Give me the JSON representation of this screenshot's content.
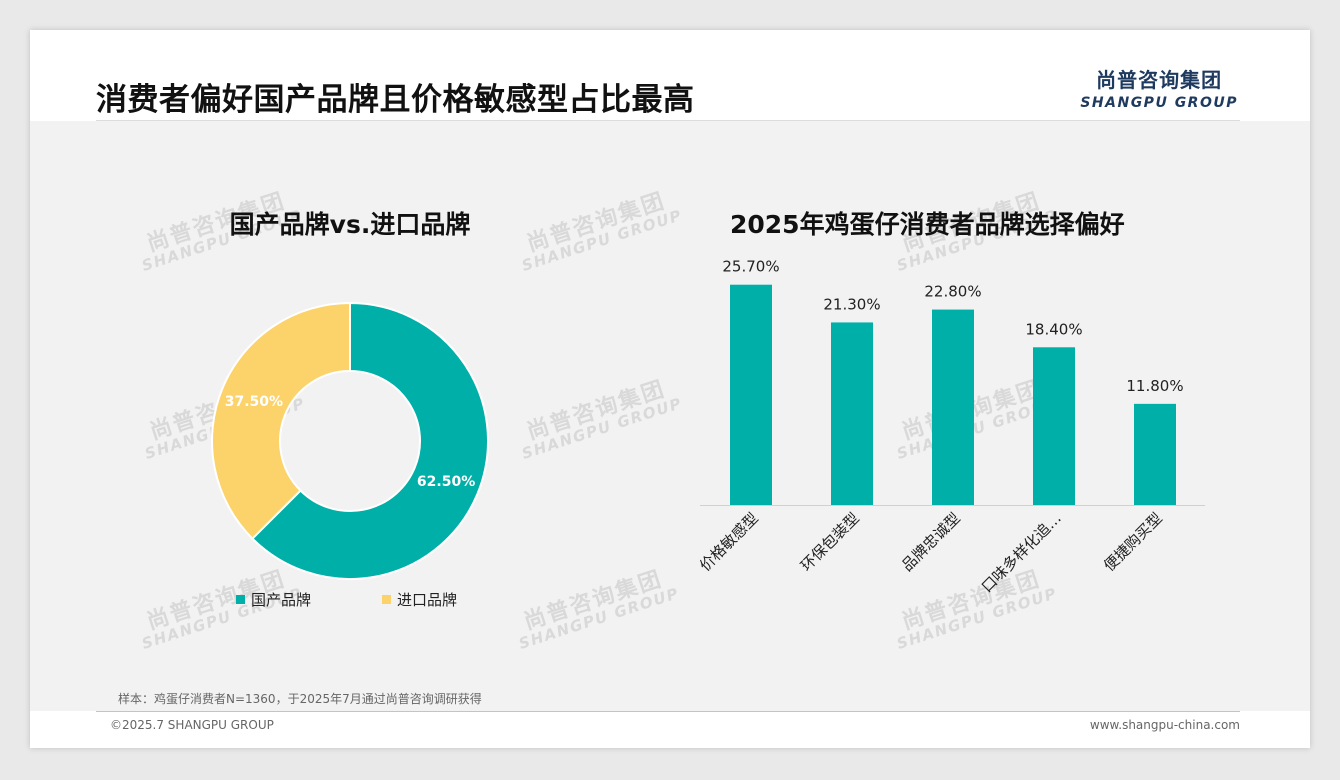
{
  "page": {
    "title": "消费者偏好国产品牌且价格敏感型占比最高",
    "logo_cn": "尚普咨询集团",
    "logo_en": "SHANGPU GROUP",
    "watermark_cn": "尚普咨询集团",
    "watermark_en": "SHANGPU GROUP",
    "footnote": "样本：鸡蛋仔消费者N=1360，于2025年7月通过尚普咨询调研获得",
    "copyright": "©2025.7 SHANGPU GROUP",
    "website": "www.shangpu-china.com"
  },
  "colors": {
    "teal": "#00b0a8",
    "yellow": "#fcd26b",
    "title": "#111111",
    "logo": "#1f3a5f"
  },
  "chart_data": [
    {
      "type": "pie",
      "title": "国产品牌vs.进口品牌",
      "donut": true,
      "categories": [
        "国产品牌",
        "进口品牌"
      ],
      "values": [
        62.5,
        37.5
      ],
      "labels": [
        "62.50%",
        "37.50%"
      ],
      "colors": [
        "#00b0a8",
        "#fcd26b"
      ],
      "legend": "bottom"
    },
    {
      "type": "bar",
      "title": "2025年鸡蛋仔消费者品牌选择偏好",
      "categories": [
        "价格敏感型",
        "环保包装型",
        "品牌忠诚型",
        "口味多样化追…",
        "便捷购买型"
      ],
      "values": [
        25.7,
        21.3,
        22.8,
        18.4,
        11.8
      ],
      "labels": [
        "25.70%",
        "21.30%",
        "22.80%",
        "18.40%",
        "11.80%"
      ],
      "color": "#00b0a8",
      "ylim": [
        0,
        28
      ],
      "grid": false
    }
  ]
}
